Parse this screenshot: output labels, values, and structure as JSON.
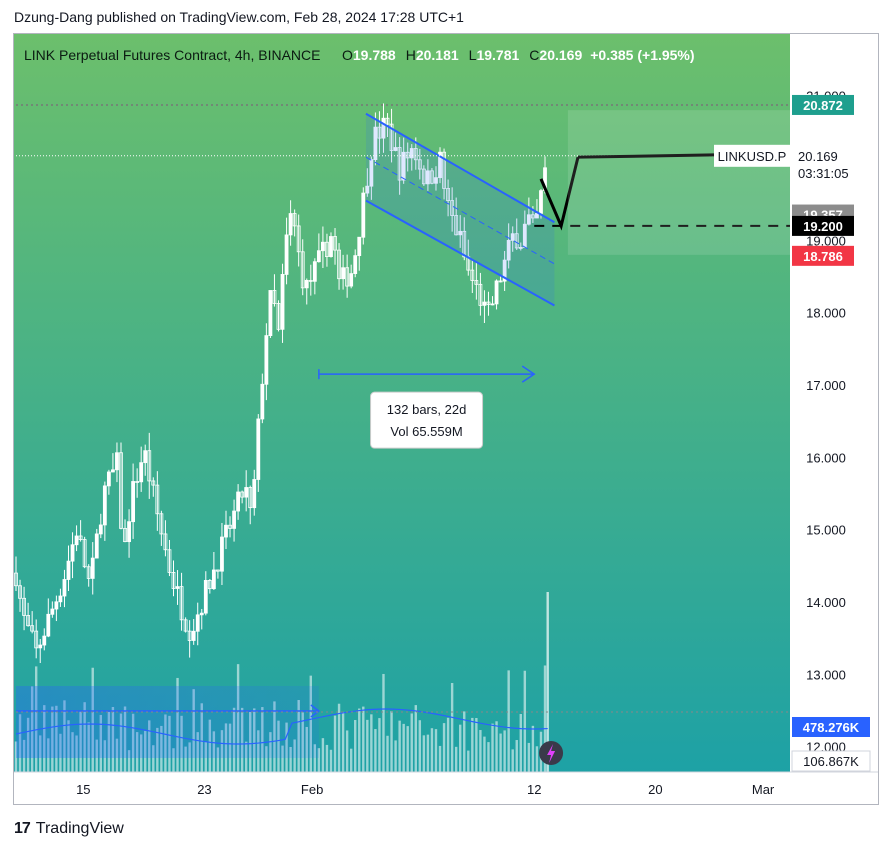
{
  "header": {
    "publish_text": "Dzung-Dang published on TradingView.com, Feb 28, 2024 17:28 UTC+1"
  },
  "footer": {
    "brand": "TradingView"
  },
  "legend": {
    "symbol": "LINK Perpetual Futures Contract, 4h, BINANCE",
    "o_label": "O",
    "o_value": "19.788",
    "h_label": "H",
    "h_value": "20.181",
    "l_label": "L",
    "l_value": "19.781",
    "c_label": "C",
    "c_value": "20.169",
    "change": "+0.385 (+1.95%)"
  },
  "colors": {
    "bg_top": "#6cbf6c",
    "bg_bottom": "#1aa0a8",
    "candle": "#ffffff",
    "channel": "#2962ff",
    "current_price_badge": "#ffffff",
    "high_badge": "#1e9f8e",
    "target_badge": "#8c8c8c",
    "level_badge": "#000000",
    "low_badge": "#f23645",
    "volume_badge": "#2962ff"
  },
  "chart_data": {
    "type": "candlestick",
    "title": "LINK Perpetual Futures Contract, 4h, BINANCE",
    "yaxis": {
      "ticks": [
        "21.000",
        "20.000",
        "19.000",
        "18.000",
        "17.000",
        "16.000",
        "15.000",
        "14.000",
        "13.000",
        "12.000"
      ],
      "ylim": [
        11.65,
        21.3
      ],
      "scale": "linear"
    },
    "xaxis": {
      "ticks": [
        {
          "label": "15",
          "t": 10
        },
        {
          "label": "23",
          "t": 28
        },
        {
          "label": "Feb",
          "t": 44
        },
        {
          "label": "12",
          "t": 77
        },
        {
          "label": "20",
          "t": 95
        },
        {
          "label": "Mar",
          "t": 111
        }
      ],
      "xlim": [
        0,
        115
      ]
    },
    "price_path_anchors": [
      [
        0,
        14.4
      ],
      [
        1,
        13.8
      ],
      [
        3,
        13.3
      ],
      [
        5,
        13.8
      ],
      [
        7,
        14.3
      ],
      [
        9,
        15.0
      ],
      [
        11,
        14.2
      ],
      [
        13,
        15.5
      ],
      [
        15,
        15.9
      ],
      [
        16,
        14.6
      ],
      [
        17,
        15.4
      ],
      [
        19,
        16.1
      ],
      [
        21,
        15.2
      ],
      [
        23,
        14.4
      ],
      [
        25,
        13.8
      ],
      [
        26,
        13.6
      ],
      [
        28,
        14.1
      ],
      [
        30,
        14.6
      ],
      [
        32,
        15.1
      ],
      [
        34,
        15.6
      ],
      [
        35,
        15.1
      ],
      [
        36,
        16.4
      ],
      [
        37,
        17.6
      ],
      [
        38,
        18.3
      ],
      [
        39,
        17.7
      ],
      [
        40,
        18.9
      ],
      [
        41,
        19.4
      ],
      [
        42,
        18.8
      ],
      [
        43,
        18.3
      ],
      [
        45,
        18.7
      ],
      [
        47,
        19.1
      ],
      [
        48,
        18.4
      ],
      [
        50,
        18.6
      ],
      [
        52,
        19.8
      ],
      [
        53,
        20.4
      ],
      [
        55,
        20.6
      ],
      [
        57,
        20.0
      ],
      [
        59,
        20.3
      ],
      [
        61,
        19.8
      ],
      [
        63,
        20.1
      ],
      [
        64,
        19.5
      ],
      [
        66,
        19.0
      ],
      [
        67,
        18.6
      ],
      [
        68,
        18.4
      ],
      [
        69,
        18.2
      ],
      [
        70,
        17.9
      ],
      [
        71,
        18.2
      ],
      [
        72,
        18.5
      ],
      [
        73,
        18.8
      ],
      [
        74,
        19.1
      ],
      [
        75,
        19.0
      ],
      [
        76,
        19.3
      ],
      [
        77,
        19.1
      ],
      [
        78,
        19.6
      ],
      [
        79,
        20.17
      ]
    ],
    "current_price": 20.169,
    "price_labels": [
      {
        "label": "20.872",
        "value": 20.872,
        "kind": "high"
      },
      {
        "label": "20.169",
        "value": 20.169,
        "kind": "current",
        "symbol": "LINKUSD.P",
        "countdown": "03:31:05"
      },
      {
        "label": "19.357",
        "value": 19.357,
        "kind": "target"
      },
      {
        "label": "19.200",
        "value": 19.2,
        "kind": "level"
      },
      {
        "label": "18.786",
        "value": 18.786,
        "kind": "low"
      }
    ],
    "volume_labels": [
      {
        "label": "478.276K",
        "kind": "volume-ma"
      },
      {
        "label": "106.867K",
        "kind": "volume"
      }
    ],
    "channel": {
      "upper": [
        [
          52,
          20.75
        ],
        [
          80,
          19.25
        ]
      ],
      "lower": [
        [
          52,
          19.55
        ],
        [
          80,
          18.1
        ]
      ]
    },
    "measure": {
      "text_bars": "132 bars, 22d",
      "text_vol": "Vol 65.559M",
      "arrow_price": 17.15,
      "arrow_t": [
        45,
        77
      ]
    },
    "projection": {
      "points": [
        [
          78,
          19.85
        ],
        [
          81,
          19.2
        ],
        [
          83.5,
          20.15
        ]
      ]
    }
  }
}
